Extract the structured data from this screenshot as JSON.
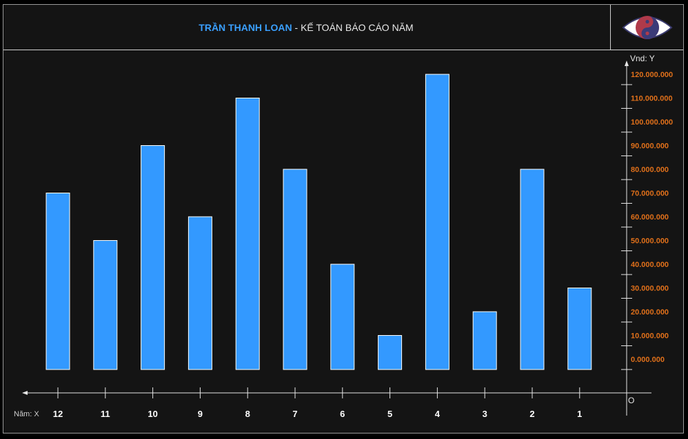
{
  "header": {
    "name": "TRẦN THANH LOAN",
    "separator": " - ",
    "subtitle": "KẾ TOÁN BÁO CÁO NĂM"
  },
  "logo": {
    "icon": "yin-yang-eye-icon"
  },
  "colors": {
    "bar": "#3399ff",
    "bar_stroke": "#ffffff",
    "y_tick": "#e0701a",
    "background": "#141414"
  },
  "chart_data": {
    "type": "bar",
    "xlabel": "Năm: X",
    "ylabel": "Vnd: Y",
    "origin_label": "O",
    "categories": [
      "12",
      "11",
      "10",
      "9",
      "8",
      "7",
      "6",
      "5",
      "4",
      "3",
      "2",
      "1"
    ],
    "values": [
      70000000,
      50000000,
      90000000,
      60000000,
      110000000,
      80000000,
      40000000,
      10000000,
      120000000,
      20000000,
      80000000,
      30000000
    ],
    "ylim": [
      0,
      120000000
    ],
    "y_ticks": [
      "0.000.000",
      "10.000.000",
      "20.000.000",
      "30.000.000",
      "40.000.000",
      "50.000.000",
      "60.000.000",
      "70.000.000",
      "80.000.000",
      "90.000.000",
      "100.000.000",
      "110.000.000",
      "120.000.000"
    ],
    "y_axis_side": "right",
    "x_axis_direction": "right-to-left",
    "grid": false,
    "legend": "none"
  }
}
